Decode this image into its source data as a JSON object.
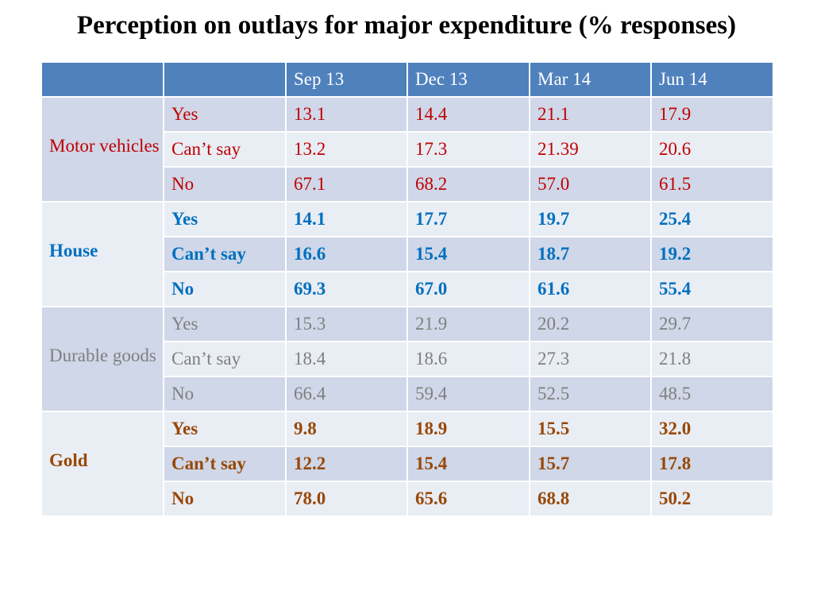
{
  "title": "Perception on outlays for major expenditure (% responses)",
  "chart_data": {
    "type": "table",
    "columns": [
      "",
      "",
      "Sep 13",
      "Dec 13",
      "Mar 14",
      "Jun 14"
    ],
    "groups": [
      {
        "category": "Motor vehicles",
        "color": "#c00000",
        "rows": [
          {
            "label": "Yes",
            "values": [
              "13.1",
              "14.4",
              "21.1",
              "17.9"
            ]
          },
          {
            "label": "Can’t say",
            "values": [
              "13.2",
              "17.3",
              "21.39",
              "20.6"
            ]
          },
          {
            "label": "No",
            "values": [
              "67.1",
              "68.2",
              "57.0",
              "61.5"
            ]
          }
        ]
      },
      {
        "category": "House",
        "color": "#0070c0",
        "rows": [
          {
            "label": "Yes",
            "values": [
              "14.1",
              "17.7",
              "19.7",
              "25.4"
            ]
          },
          {
            "label": "Can’t say",
            "values": [
              "16.6",
              "15.4",
              "18.7",
              "19.2"
            ]
          },
          {
            "label": "No",
            "values": [
              "69.3",
              "67.0",
              "61.6",
              "55.4"
            ]
          }
        ]
      },
      {
        "category": "Durable goods",
        "color": "#7f7f7f",
        "rows": [
          {
            "label": "Yes",
            "values": [
              "15.3",
              "21.9",
              "20.2",
              "29.7"
            ]
          },
          {
            "label": "Can’t say",
            "values": [
              "18.4",
              "18.6",
              "27.3",
              "21.8"
            ]
          },
          {
            "label": "No",
            "values": [
              "66.4",
              "59.4",
              "52.5",
              "48.5"
            ]
          }
        ]
      },
      {
        "category": "Gold",
        "color": "#984807",
        "rows": [
          {
            "label": "Yes",
            "values": [
              "9.8",
              "18.9",
              "15.5",
              "32.0"
            ]
          },
          {
            "label": "Can’t say",
            "values": [
              "12.2",
              "15.4",
              "15.7",
              "17.8"
            ]
          },
          {
            "label": "No",
            "values": [
              "78.0",
              "65.6",
              "68.8",
              "50.2"
            ]
          }
        ]
      }
    ],
    "colors": {
      "header_background": "#4f81bd",
      "band_dark": "#cfd7e8",
      "band_light": "#e9edf4"
    }
  }
}
